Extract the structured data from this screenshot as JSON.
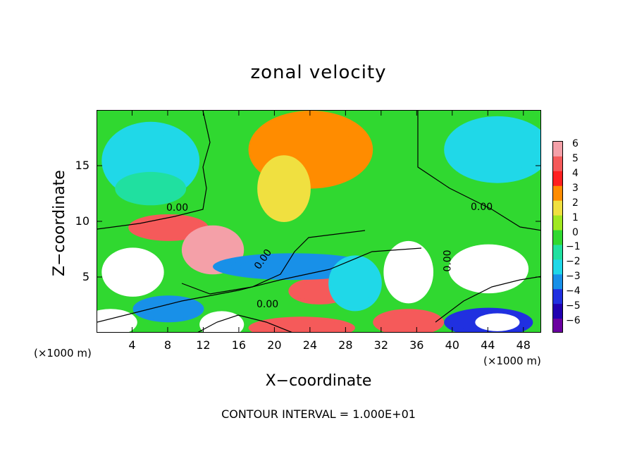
{
  "chart_data": {
    "type": "heatmap",
    "title": "zonal velocity",
    "xlabel": "X−coordinate",
    "ylabel": "Z−coordinate",
    "x_unit_left": "(×1000 m)",
    "x_unit_right": "(×1000 m)",
    "x_ticks": [
      "4",
      "8",
      "12",
      "16",
      "20",
      "24",
      "28",
      "32",
      "36",
      "40",
      "44",
      "48"
    ],
    "x_tick_values": [
      4,
      8,
      12,
      16,
      20,
      24,
      28,
      32,
      36,
      40,
      44,
      48
    ],
    "y_ticks": [
      "5",
      "10",
      "15"
    ],
    "y_tick_values": [
      5,
      10,
      15
    ],
    "xlim": [
      0,
      50
    ],
    "ylim": [
      0,
      20
    ],
    "colorbar_labels": [
      "6",
      "5",
      "4",
      "3",
      "2",
      "1",
      "0",
      "−1",
      "−2",
      "−3",
      "−4",
      "−5",
      "−6"
    ],
    "colorbar_values": [
      6,
      5,
      4,
      3,
      2,
      1,
      0,
      -1,
      -2,
      -3,
      -4,
      -5,
      -6
    ],
    "colorbar_range": [
      -6,
      6
    ],
    "contour_labels": [
      "0.00",
      "0.00",
      "0.00",
      "0.00",
      "0.00"
    ],
    "contour_note": "CONTOUR INTERVAL = 1.000E+01",
    "colors": {
      "6": "#f4a0a8",
      "5": "#f55a5a",
      "4": "#ff2020",
      "3": "#ff8c00",
      "2": "#f0e040",
      "1": "#a0e820",
      "0": "#30d830",
      "-1": "#20e0a0",
      "-2": "#20d8e8",
      "-3": "#1890e8",
      "-4": "#2030e0",
      "-5": "#2000b0",
      "-6": "#6a00a0",
      "over": "#ffffff",
      "under": "#ffffff"
    },
    "regions": [
      {
        "x": 25,
        "y": 12,
        "rx": 40,
        "ry": 20,
        "v": 0.3
      },
      {
        "x": 24,
        "y": 16.5,
        "rx": 7,
        "ry": 3.5,
        "v": 2.8
      },
      {
        "x": 21,
        "y": 13,
        "rx": 3,
        "ry": 3,
        "v": 1.6
      },
      {
        "x": 6,
        "y": 15.5,
        "rx": 5.5,
        "ry": 3.5,
        "v": -2.5
      },
      {
        "x": 45,
        "y": 16.5,
        "rx": 6,
        "ry": 3,
        "v": -2.0
      },
      {
        "x": 6,
        "y": 13,
        "rx": 4,
        "ry": 1.5,
        "v": -1.2
      },
      {
        "x": 8,
        "y": 9.5,
        "rx": 4.5,
        "ry": 1.2,
        "v": 5.0
      },
      {
        "x": 13,
        "y": 7.5,
        "rx": 3.5,
        "ry": 2.2,
        "v": 5.5
      },
      {
        "x": 4,
        "y": 5.5,
        "rx": 3.5,
        "ry": 2.2,
        "v": -6.5
      },
      {
        "x": 25,
        "y": 3.8,
        "rx": 3.5,
        "ry": 1.2,
        "v": 4.5
      },
      {
        "x": 22,
        "y": 6,
        "rx": 9,
        "ry": 1.2,
        "v": -3.5
      },
      {
        "x": 35,
        "y": 5.5,
        "rx": 2.8,
        "ry": 2.8,
        "v": -6.5
      },
      {
        "x": 44,
        "y": 5.8,
        "rx": 4.5,
        "ry": 2.2,
        "v": 6.5
      },
      {
        "x": 1.5,
        "y": 1.0,
        "rx": 3,
        "ry": 1.2,
        "v": 6.5
      },
      {
        "x": 14,
        "y": 0.8,
        "rx": 2.5,
        "ry": 1.2,
        "v": 6.5
      },
      {
        "x": 23,
        "y": 0.5,
        "rx": 6,
        "ry": 1.0,
        "v": 5.0
      },
      {
        "x": 35,
        "y": 1.0,
        "rx": 4,
        "ry": 1.2,
        "v": 5.0
      },
      {
        "x": 44,
        "y": 1.0,
        "rx": 5,
        "ry": 1.3,
        "v": -4.0
      },
      {
        "x": 45,
        "y": 1.0,
        "rx": 2.5,
        "ry": 0.8,
        "v": -6.5
      },
      {
        "x": 29,
        "y": 4.5,
        "rx": 3,
        "ry": 2.5,
        "v": -2.5
      },
      {
        "x": 8,
        "y": 2.2,
        "rx": 4,
        "ry": 1.2,
        "v": -3.0
      }
    ]
  }
}
